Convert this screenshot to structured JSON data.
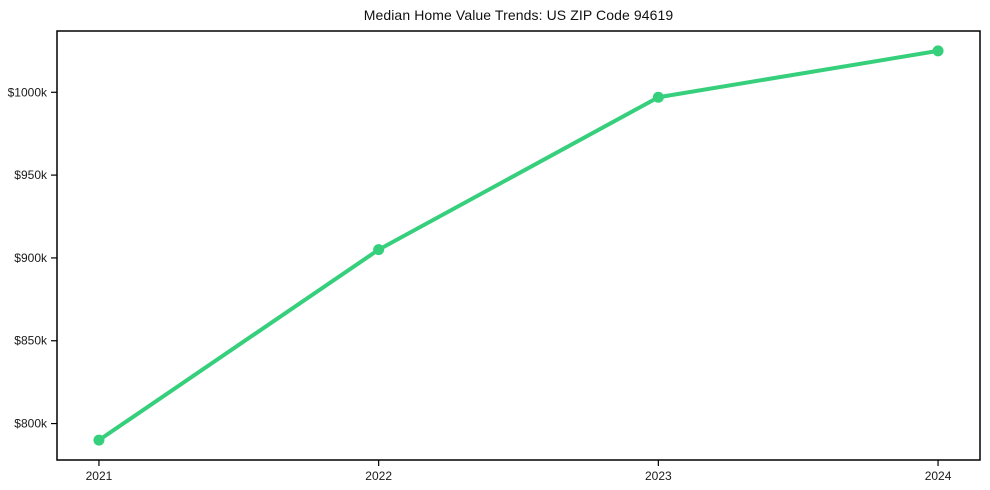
{
  "chart_data": {
    "type": "line",
    "title": "Median Home Value Trends: US ZIP Code 94619",
    "x": [
      2021,
      2022,
      2023,
      2024
    ],
    "xtick_labels": [
      "2021",
      "2022",
      "2023",
      "2024"
    ],
    "series": [
      {
        "name": "Median Home Value",
        "values": [
          790,
          905,
          997,
          1025
        ],
        "unit": "thousand USD",
        "color": "#36cf7c"
      }
    ],
    "yticks": [
      800,
      850,
      900,
      950,
      1000
    ],
    "ytick_labels": [
      "$800k",
      "$850k",
      "$900k",
      "$950k",
      "$1000k"
    ],
    "ylim": [
      778,
      1037
    ],
    "xlim": [
      2020.85,
      2024.15
    ],
    "grid": false,
    "legend_position": "none",
    "marker": "circle",
    "line_width": 4,
    "axis_color": "#000000"
  }
}
